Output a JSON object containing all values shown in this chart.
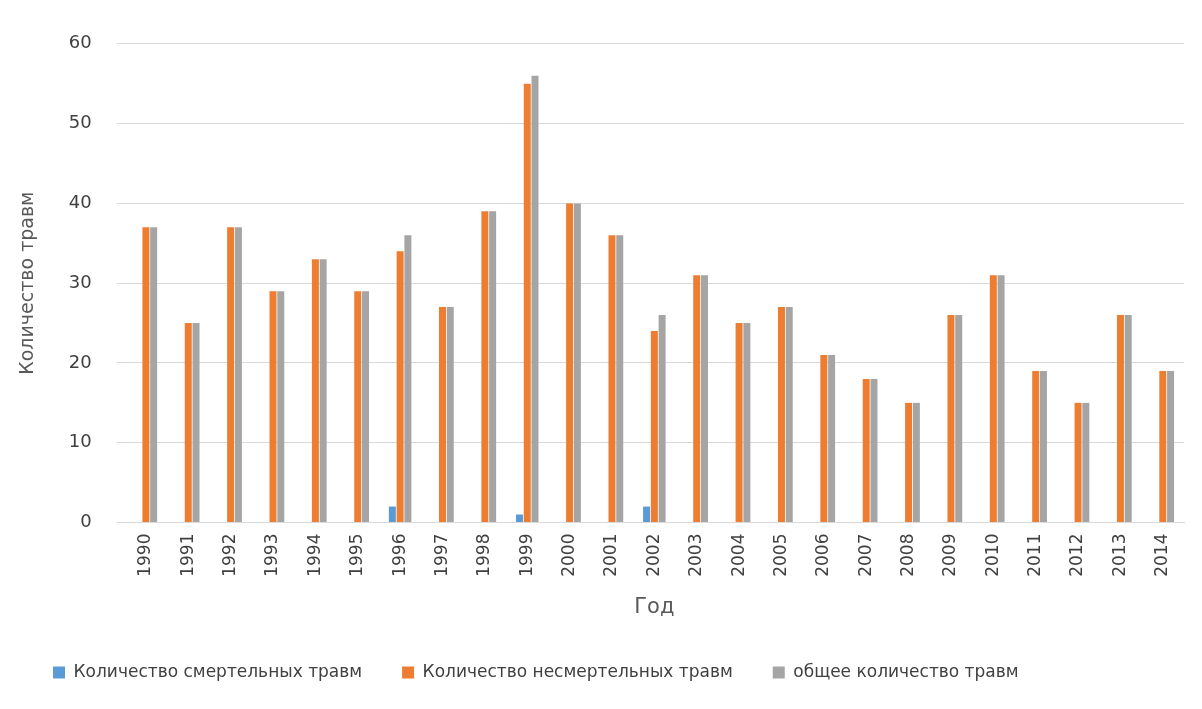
{
  "chart_data": {
    "type": "bar",
    "xlabel": "Год",
    "ylabel": "Количество травм",
    "categories": [
      "1990",
      "1991",
      "1992",
      "1993",
      "1994",
      "1995",
      "1996",
      "1997",
      "1998",
      "1999",
      "2000",
      "2001",
      "2002",
      "2003",
      "2004",
      "2005",
      "2006",
      "2007",
      "2008",
      "2009",
      "2010",
      "2011",
      "2012",
      "2013",
      "2014"
    ],
    "series": [
      {
        "name": "Количество смертельных травм",
        "color": "#5b9bd5",
        "values": [
          0,
          0,
          0,
          0,
          0,
          0,
          2,
          0,
          0,
          1,
          0,
          0,
          2,
          0,
          0,
          0,
          0,
          0,
          0,
          0,
          0,
          0,
          0,
          0,
          0
        ]
      },
      {
        "name": "Количество несмертельных травм",
        "color": "#ed7d31",
        "values": [
          37,
          25,
          37,
          29,
          33,
          29,
          34,
          27,
          39,
          55,
          40,
          36,
          24,
          31,
          25,
          27,
          21,
          18,
          15,
          26,
          31,
          19,
          15,
          26,
          19
        ]
      },
      {
        "name": "общее количество травм",
        "color": "#a5a5a5",
        "values": [
          37,
          25,
          37,
          29,
          33,
          29,
          36,
          27,
          39,
          56,
          40,
          36,
          26,
          31,
          25,
          27,
          21,
          18,
          15,
          26,
          31,
          19,
          15,
          26,
          19
        ]
      }
    ],
    "ylim": [
      0,
      60
    ],
    "yticks": [
      0,
      10,
      20,
      30,
      40,
      50,
      60
    ],
    "grid": "y",
    "legend": "bottom"
  }
}
